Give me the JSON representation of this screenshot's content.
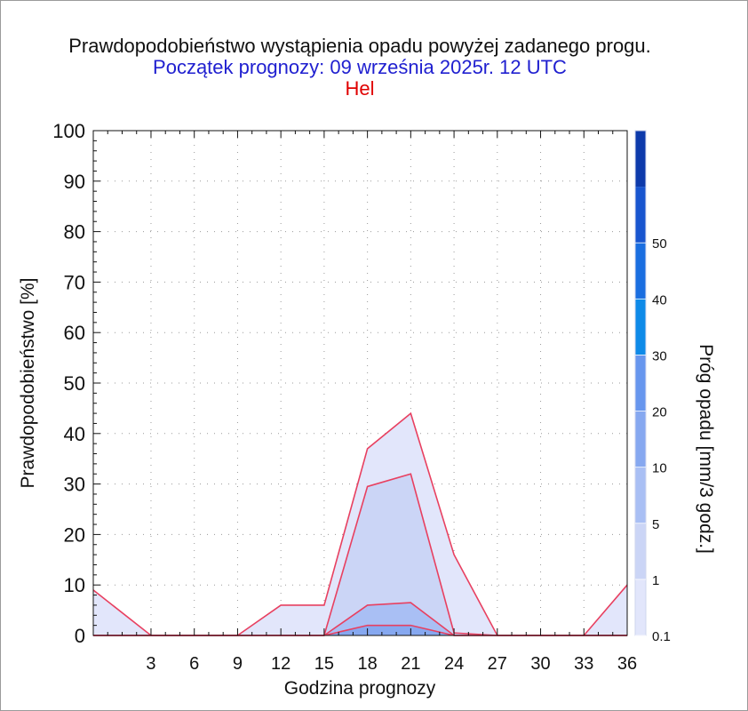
{
  "titles": {
    "main": "Prawdopodobieństwo wystąpienia opadu powyżej zadanego progu.",
    "subtitle": "Początek prognozy: 09 września 2025r. 12 UTC",
    "station": "Hel"
  },
  "colors": {
    "title": "#111111",
    "subtitle": "#2020d0",
    "station": "#e00000",
    "outline": "#e84060",
    "band_0_1": "#e2e6fb",
    "band_1": "#cbd5f6",
    "band_5": "#a9bff4",
    "band_10": "#86a8f0",
    "band_20": "#6796ee",
    "band_30": "#0e8ae8",
    "band_40": "#1a6ee0",
    "band_50": "#1855cf",
    "band_top": "#0d3aab"
  },
  "chart_data": {
    "type": "area",
    "xlabel": "Godzina prognozy",
    "ylabel": "Prawdopodobieństwo [%]",
    "xlim": [
      -1,
      36
    ],
    "ylim": [
      0,
      100
    ],
    "x_ticks": [
      3,
      6,
      9,
      12,
      15,
      18,
      21,
      24,
      27,
      30,
      33,
      36
    ],
    "y_ticks": [
      0,
      10,
      20,
      30,
      40,
      50,
      60,
      70,
      80,
      90,
      100
    ],
    "grid": true,
    "x": [
      -1,
      3,
      6,
      9,
      12,
      15,
      18,
      21,
      24,
      27,
      30,
      33,
      36
    ],
    "series": [
      {
        "threshold": "0.1",
        "values": [
          9,
          0,
          0,
          0,
          6,
          6,
          37,
          44,
          16,
          0,
          0,
          0,
          10
        ]
      },
      {
        "threshold": "1",
        "values": [
          0,
          0,
          0,
          0,
          0,
          0,
          29.5,
          32,
          0.5,
          0,
          0,
          0,
          0
        ]
      },
      {
        "threshold": "5",
        "values": [
          0,
          0,
          0,
          0,
          0,
          0,
          6,
          6.5,
          0,
          0,
          0,
          0,
          0
        ]
      },
      {
        "threshold": "10",
        "values": [
          0,
          0,
          0,
          0,
          0,
          0,
          2,
          2,
          0,
          0,
          0,
          0,
          0
        ]
      }
    ],
    "colorbar": {
      "label": "Próg opadu [mm/3 godz.]",
      "tick_labels": [
        "0.1",
        "1",
        "5",
        "10",
        "20",
        "30",
        "40",
        "50"
      ]
    }
  }
}
